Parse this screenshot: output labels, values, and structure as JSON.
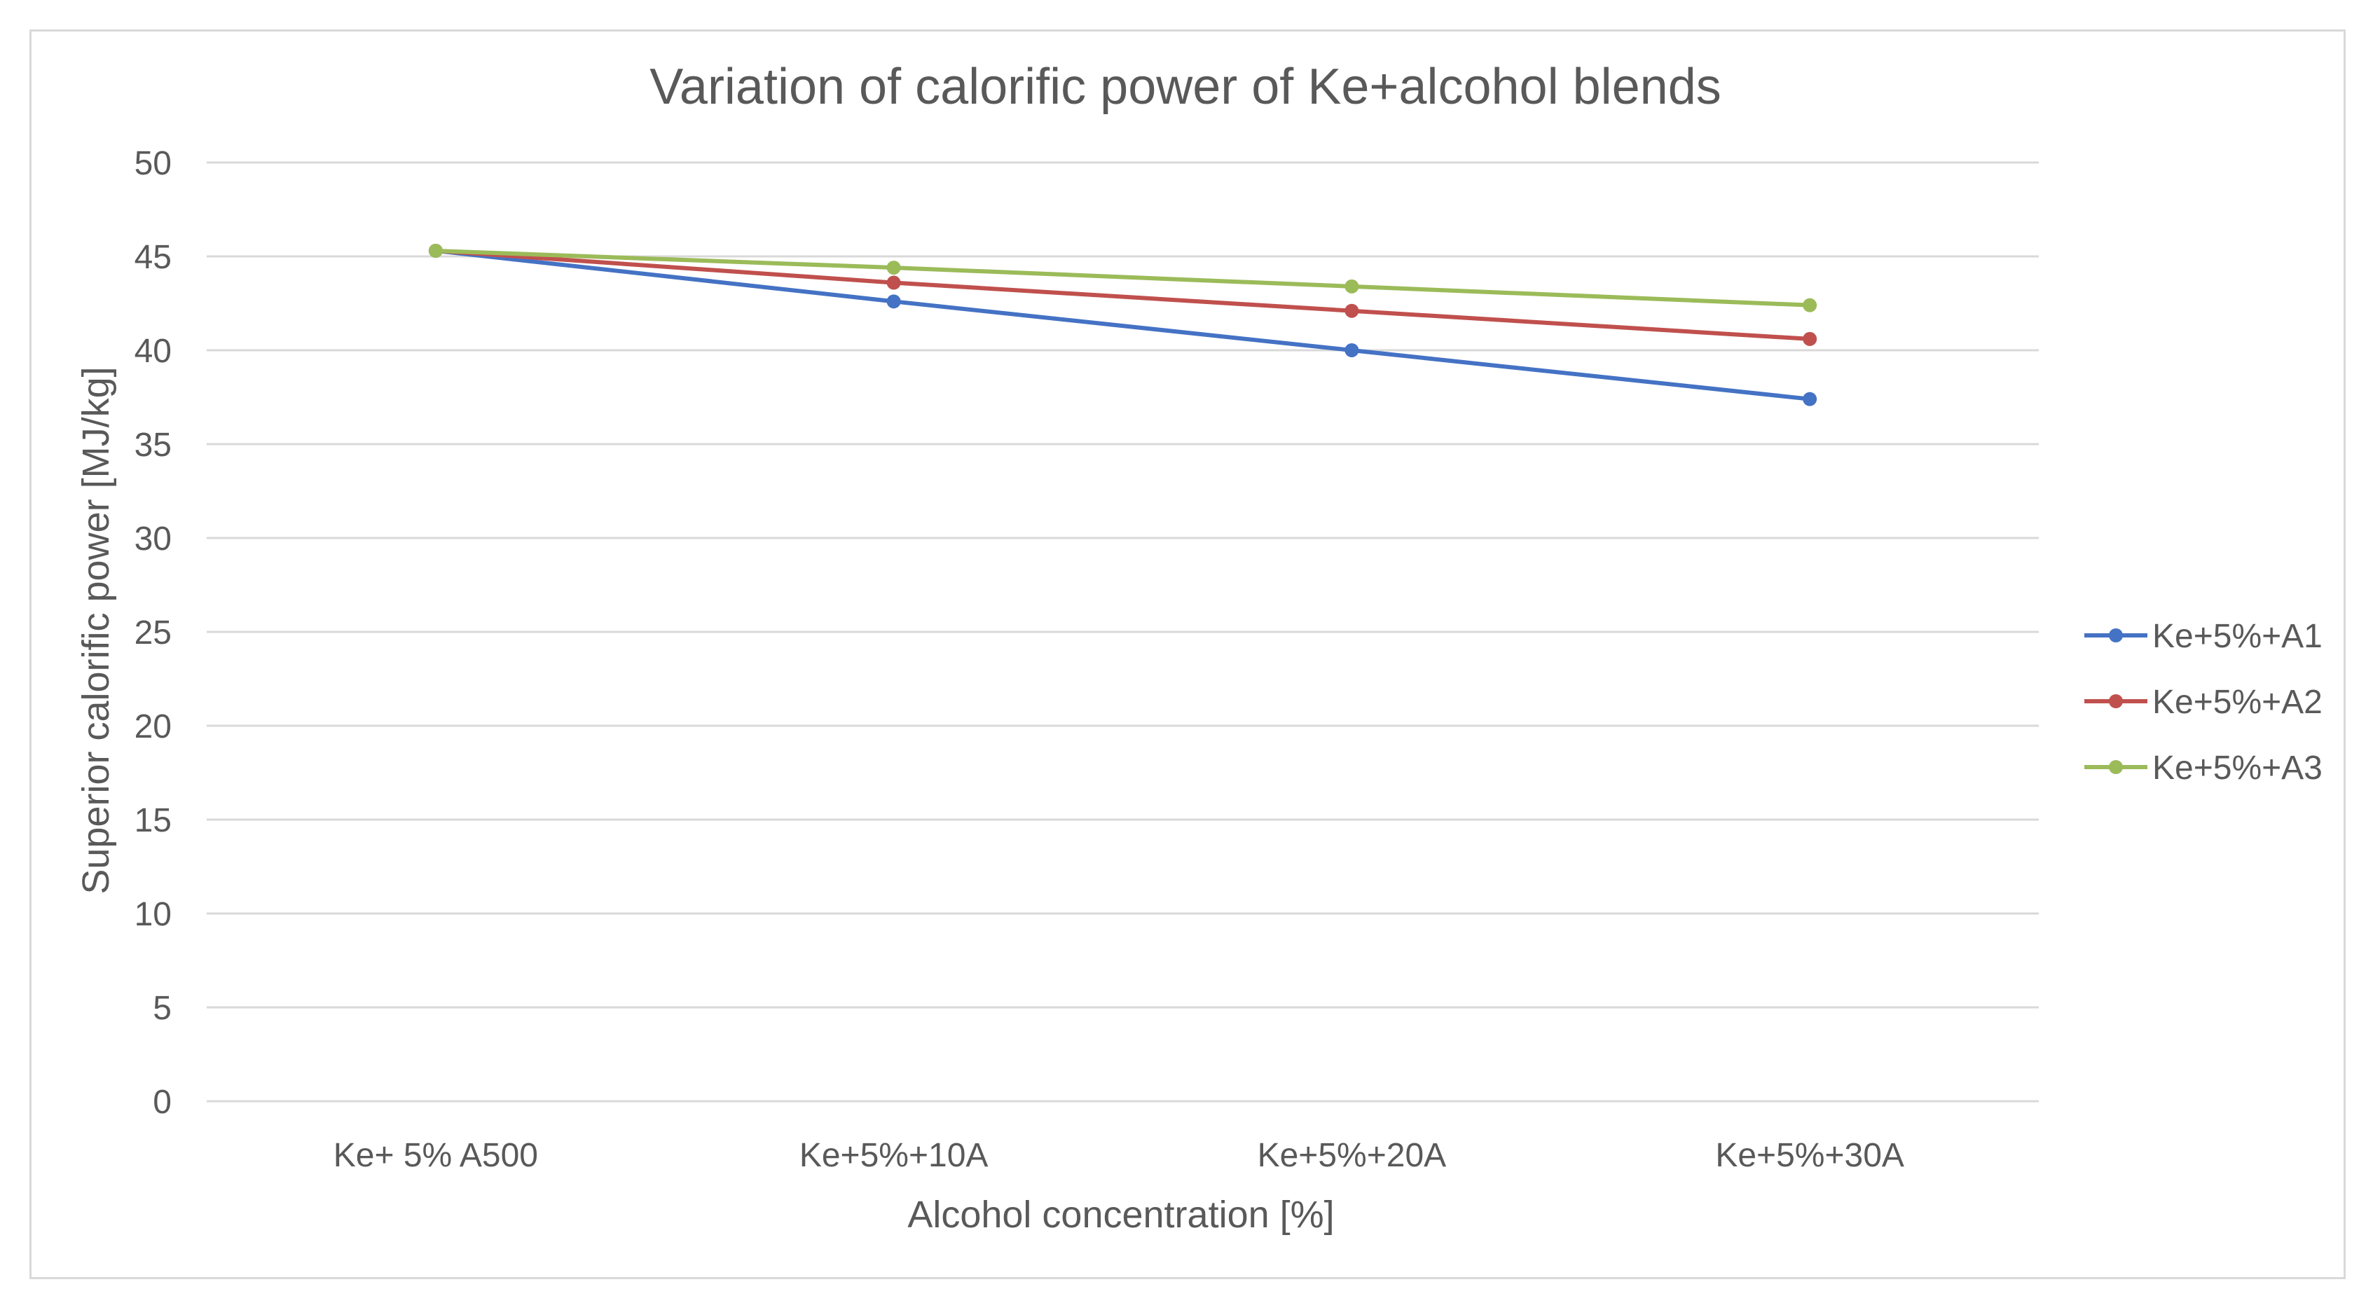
{
  "chart_data": {
    "type": "line",
    "title": "Variation of calorific power of Ke+alcohol blends",
    "xlabel": "Alcohol concentration [%]",
    "ylabel": "Superior calorific power [MJ/kg]",
    "categories": [
      "Ke+ 5% A500",
      "Ke+5%+10A",
      "Ke+5%+20A",
      "Ke+5%+30A"
    ],
    "ylim": [
      0,
      50
    ],
    "yticks": [
      0,
      5,
      10,
      15,
      20,
      25,
      30,
      35,
      40,
      45,
      50
    ],
    "grid": true,
    "legend_position": "right",
    "series": [
      {
        "name": "Ke+5%+A1",
        "color": "#4472c4",
        "values": [
          45.3,
          42.6,
          40.0,
          37.4
        ]
      },
      {
        "name": "Ke+5%+A2",
        "color": "#c0504d",
        "values": [
          45.3,
          43.6,
          42.1,
          40.6
        ]
      },
      {
        "name": "Ke+5%+A3",
        "color": "#9bbb59",
        "values": [
          45.3,
          44.4,
          43.4,
          42.4
        ]
      }
    ]
  }
}
